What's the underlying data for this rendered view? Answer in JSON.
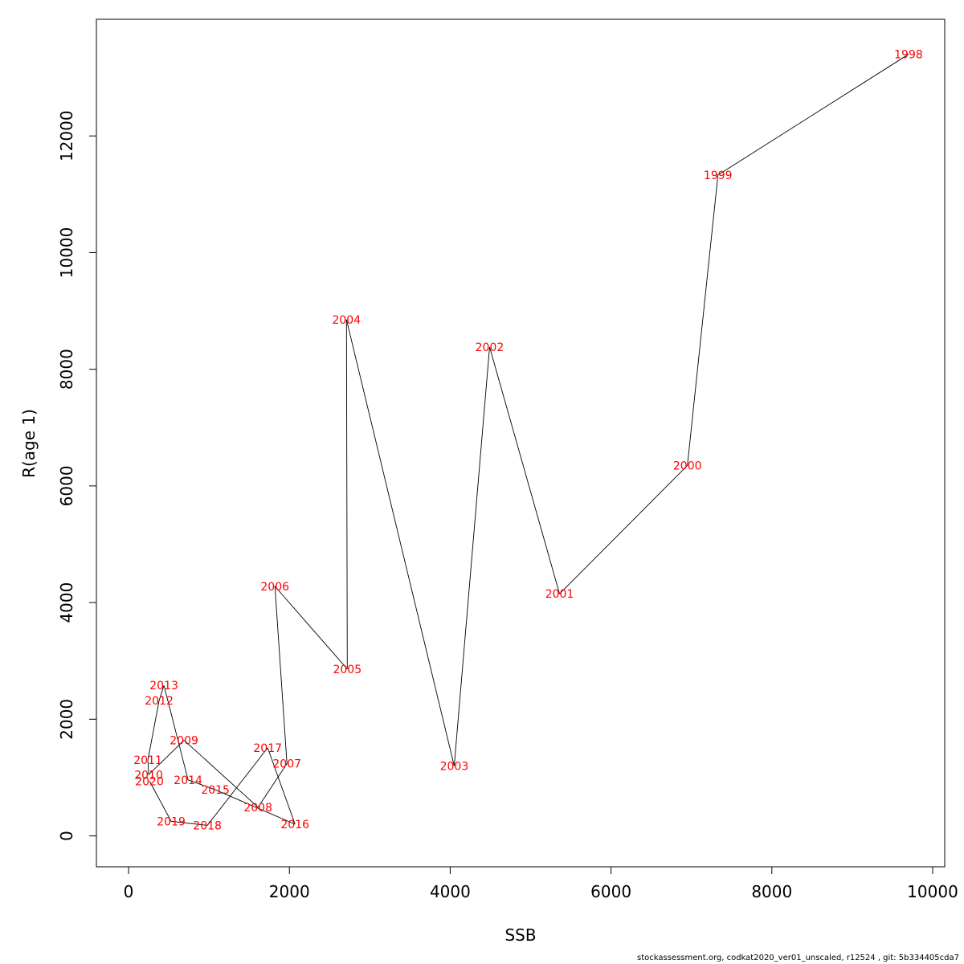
{
  "chart_data": {
    "type": "line",
    "xlabel": "SSB",
    "ylabel": "R(age 1)",
    "xlim": [
      -400,
      10150
    ],
    "ylim": [
      -530,
      14000
    ],
    "x_ticks": [
      0,
      2000,
      4000,
      6000,
      8000,
      10000
    ],
    "y_ticks": [
      0,
      2000,
      4000,
      6000,
      8000,
      10000,
      12000
    ],
    "points": [
      {
        "label": "1998",
        "x": 9700,
        "y": 13400
      },
      {
        "label": "1999",
        "x": 7330,
        "y": 11330
      },
      {
        "label": "2000",
        "x": 6950,
        "y": 6350
      },
      {
        "label": "2001",
        "x": 5360,
        "y": 4150
      },
      {
        "label": "2002",
        "x": 4490,
        "y": 8380
      },
      {
        "label": "2003",
        "x": 4050,
        "y": 1200
      },
      {
        "label": "2004",
        "x": 2710,
        "y": 8850
      },
      {
        "label": "2005",
        "x": 2720,
        "y": 2860
      },
      {
        "label": "2006",
        "x": 1820,
        "y": 4280
      },
      {
        "label": "2007",
        "x": 1970,
        "y": 1240
      },
      {
        "label": "2008",
        "x": 1610,
        "y": 490
      },
      {
        "label": "2009",
        "x": 690,
        "y": 1640
      },
      {
        "label": "2010",
        "x": 250,
        "y": 1050
      },
      {
        "label": "2011",
        "x": 240,
        "y": 1300
      },
      {
        "label": "2012",
        "x": 380,
        "y": 2320
      },
      {
        "label": "2013",
        "x": 440,
        "y": 2580
      },
      {
        "label": "2014",
        "x": 740,
        "y": 960
      },
      {
        "label": "2015",
        "x": 1080,
        "y": 790
      },
      {
        "label": "2016",
        "x": 2070,
        "y": 200
      },
      {
        "label": "2017",
        "x": 1730,
        "y": 1510
      },
      {
        "label": "2018",
        "x": 980,
        "y": 180
      },
      {
        "label": "2019",
        "x": 530,
        "y": 250
      },
      {
        "label": "2020",
        "x": 260,
        "y": 940
      }
    ]
  },
  "footer": "stockassessment.org, codkat2020_ver01_unscaled, r12524 , git: 5b334405cda7"
}
